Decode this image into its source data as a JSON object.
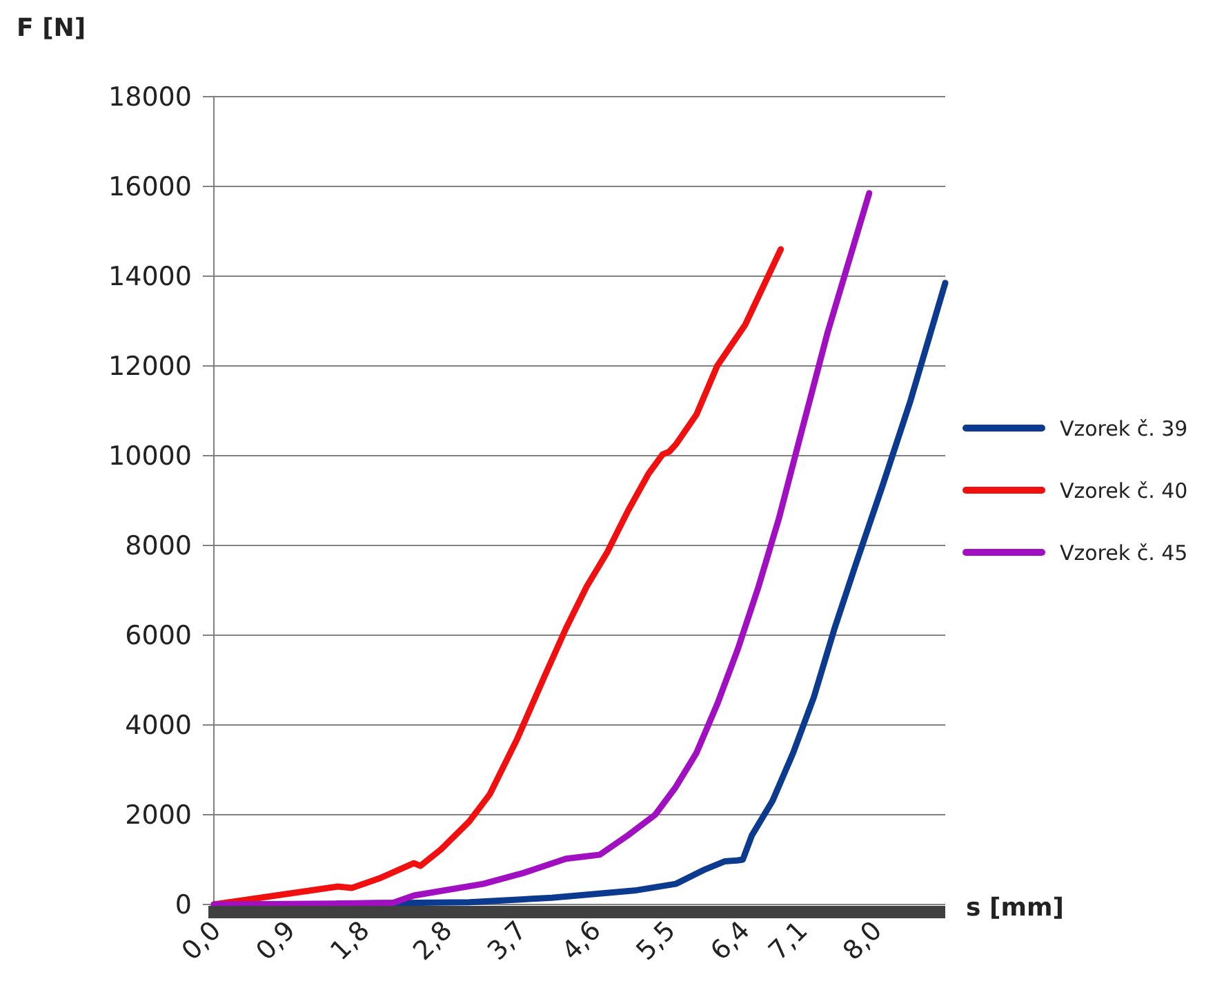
{
  "chart_data": {
    "type": "line",
    "xlabel": "s [mm]",
    "ylabel": "F [N]",
    "xlim": [
      0,
      8.85
    ],
    "xticks": [
      {
        "value": 0,
        "label": "0,0"
      },
      {
        "value": 0.9,
        "label": "0,9"
      },
      {
        "value": 1.8,
        "label": "1,8"
      },
      {
        "value": 2.8,
        "label": "2,8"
      },
      {
        "value": 3.7,
        "label": "3,7"
      },
      {
        "value": 4.6,
        "label": "4,6"
      },
      {
        "value": 5.5,
        "label": "5,5"
      },
      {
        "value": 6.4,
        "label": "6,4"
      },
      {
        "value": 7.1,
        "label": "7,1"
      },
      {
        "value": 8.0,
        "label": "8,0"
      }
    ],
    "ylim": [
      0,
      18000
    ],
    "yticks": [
      0,
      2000,
      4000,
      6000,
      8000,
      10000,
      12000,
      14000,
      16000,
      18000
    ],
    "grid": "y",
    "legend": "right",
    "marker": "none",
    "line_style": "solid",
    "series": [
      {
        "name": "Vzorek č. 39",
        "color": "#0b3a8e",
        "x": [
          1.5,
          3.09,
          4.09,
          5.09,
          5.59,
          5.93,
          6.18,
          6.33,
          6.4,
          6.51,
          6.76,
          7.01,
          7.26,
          7.51,
          7.76,
          8.1,
          8.43,
          8.85
        ],
        "values": [
          20,
          50,
          150,
          310,
          460,
          770,
          960,
          980,
          1000,
          1540,
          2310,
          3380,
          4620,
          6150,
          7540,
          9380,
          11230,
          13850
        ]
      },
      {
        "name": "Vzorek č. 40",
        "color": "#f01010",
        "x": [
          0,
          0.75,
          1.5,
          1.67,
          2.0,
          2.42,
          2.5,
          2.75,
          3.09,
          3.34,
          3.67,
          4.0,
          4.26,
          4.51,
          4.76,
          5.01,
          5.26,
          5.43,
          5.51,
          5.59,
          5.84,
          6.09,
          6.43,
          6.86
        ],
        "values": [
          0,
          200,
          400,
          370,
          580,
          920,
          860,
          1230,
          1850,
          2460,
          3690,
          5080,
          6150,
          7080,
          7850,
          8770,
          9600,
          10030,
          10090,
          10250,
          10920,
          12000,
          12920,
          14600
        ]
      },
      {
        "name": "Vzorek č. 45",
        "color": "#a010c0",
        "x": [
          0,
          1.5,
          2.17,
          2.42,
          3.26,
          3.76,
          4.26,
          4.54,
          4.67,
          5.01,
          5.34,
          5.59,
          5.84,
          6.09,
          6.34,
          6.59,
          6.84,
          7.1,
          7.43,
          7.93
        ],
        "values": [
          0,
          20,
          40,
          200,
          460,
          710,
          1020,
          1080,
          1110,
          1540,
          2000,
          2620,
          3380,
          4460,
          5690,
          7080,
          8620,
          10460,
          12770,
          15850
        ]
      }
    ]
  }
}
